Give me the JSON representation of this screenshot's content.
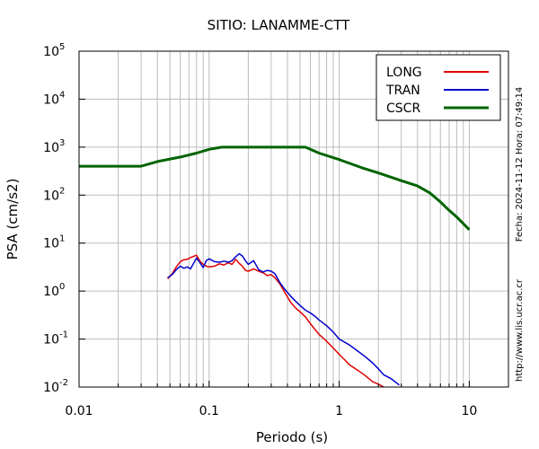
{
  "chart_data": {
    "type": "line",
    "title": "SITIO: LANAMME-CTT",
    "xlabel": "Periodo (s)",
    "ylabel": "PSA (cm/s2)",
    "x_scale": "log",
    "y_scale": "log",
    "xlim": [
      0.01,
      20
    ],
    "ylim": [
      0.01,
      100000
    ],
    "x_ticks": [
      {
        "value": 0.01,
        "label": "0.01"
      },
      {
        "value": 0.1,
        "label": "0.1"
      },
      {
        "value": 1,
        "label": "1"
      },
      {
        "value": 10,
        "label": "10"
      }
    ],
    "y_ticks": [
      {
        "value": 0.01,
        "base": "10",
        "exp": "-2"
      },
      {
        "value": 0.1,
        "base": "10",
        "exp": "-1"
      },
      {
        "value": 1,
        "base": "10",
        "exp": "0"
      },
      {
        "value": 10,
        "base": "10",
        "exp": "1"
      },
      {
        "value": 100,
        "base": "10",
        "exp": "2"
      },
      {
        "value": 1000,
        "base": "10",
        "exp": "3"
      },
      {
        "value": 10000,
        "base": "10",
        "exp": "4"
      },
      {
        "value": 100000,
        "base": "10",
        "exp": "5"
      }
    ],
    "grid": true,
    "legend_position": "top-right",
    "series": [
      {
        "name": "LONG",
        "color": "#e00000",
        "x": [
          0.048,
          0.052,
          0.056,
          0.06,
          0.064,
          0.068,
          0.072,
          0.076,
          0.08,
          0.085,
          0.09,
          0.095,
          0.1,
          0.11,
          0.12,
          0.13,
          0.14,
          0.15,
          0.16,
          0.17,
          0.18,
          0.19,
          0.2,
          0.22,
          0.24,
          0.26,
          0.28,
          0.3,
          0.32,
          0.35,
          0.38,
          0.42,
          0.46,
          0.5,
          0.55,
          0.6,
          0.65,
          0.7,
          0.8,
          0.9,
          1.0,
          1.1,
          1.2,
          1.4,
          1.6,
          1.8,
          2.0,
          2.2
        ],
        "y": [
          1.8,
          2.3,
          3.2,
          4.1,
          4.5,
          4.6,
          5.0,
          5.3,
          5.6,
          4.2,
          3.6,
          3.3,
          3.2,
          3.3,
          3.7,
          3.5,
          3.9,
          3.6,
          4.6,
          3.8,
          3.3,
          2.7,
          2.6,
          2.9,
          2.6,
          2.4,
          2.1,
          2.2,
          1.9,
          1.4,
          0.95,
          0.6,
          0.45,
          0.37,
          0.29,
          0.21,
          0.16,
          0.125,
          0.09,
          0.065,
          0.048,
          0.037,
          0.029,
          0.022,
          0.017,
          0.013,
          0.0115,
          0.01
        ]
      },
      {
        "name": "TRAN",
        "color": "#0000cc",
        "x": [
          0.048,
          0.052,
          0.056,
          0.06,
          0.064,
          0.068,
          0.072,
          0.076,
          0.08,
          0.085,
          0.09,
          0.095,
          0.1,
          0.11,
          0.12,
          0.13,
          0.14,
          0.15,
          0.16,
          0.17,
          0.18,
          0.19,
          0.2,
          0.22,
          0.24,
          0.26,
          0.28,
          0.3,
          0.32,
          0.35,
          0.38,
          0.42,
          0.46,
          0.5,
          0.55,
          0.6,
          0.65,
          0.7,
          0.8,
          0.9,
          1.0,
          1.2,
          1.4,
          1.6,
          1.8,
          2.0,
          2.2,
          2.5,
          2.9
        ],
        "y": [
          1.9,
          2.2,
          2.8,
          3.3,
          3.0,
          3.2,
          2.9,
          3.8,
          4.9,
          3.9,
          3.1,
          4.3,
          4.7,
          4.1,
          4.0,
          4.2,
          4.0,
          4.3,
          5.2,
          6.0,
          5.4,
          4.3,
          3.6,
          4.3,
          2.8,
          2.5,
          2.7,
          2.6,
          2.3,
          1.5,
          1.1,
          0.8,
          0.62,
          0.5,
          0.4,
          0.35,
          0.3,
          0.25,
          0.19,
          0.14,
          0.1,
          0.075,
          0.055,
          0.042,
          0.032,
          0.024,
          0.018,
          0.015,
          0.011
        ]
      },
      {
        "name": "CSCR",
        "color": "#006400",
        "x": [
          0.01,
          0.03,
          0.04,
          0.06,
          0.08,
          0.1,
          0.125,
          0.15,
          0.2,
          0.3,
          0.4,
          0.55,
          0.7,
          1.0,
          1.5,
          2.0,
          3.0,
          4.0,
          5.0,
          6.0,
          7.0,
          8.0,
          10.0
        ],
        "y": [
          400,
          400,
          500,
          620,
          750,
          900,
          1000,
          1000,
          1000,
          1000,
          1000,
          1000,
          750,
          550,
          370,
          290,
          200,
          155,
          110,
          72,
          48,
          35,
          19
        ]
      }
    ],
    "side_texts": {
      "right_top": "Fecha: 2024-11-12  Hora: 07:49:14",
      "right_bottom": "http://www.lis.ucr.ac.cr"
    }
  }
}
